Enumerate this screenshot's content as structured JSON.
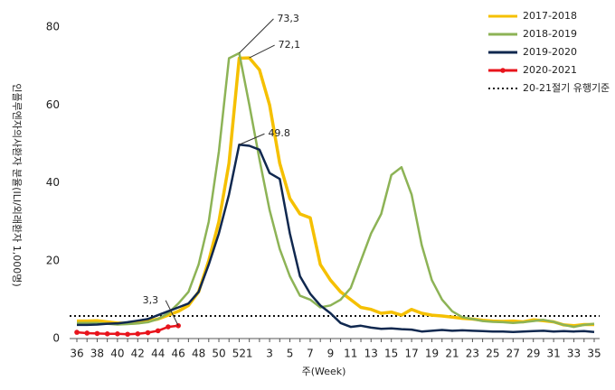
{
  "chart_data": {
    "type": "line",
    "ylabel": "인플루엔자의사환자 분율(ILI/외래환자 1,000명)",
    "xlabel": "주(Week)",
    "categories": [
      "36",
      null,
      "38",
      null,
      "40",
      null,
      "42",
      null,
      "44",
      null,
      "46",
      null,
      "48",
      null,
      "50",
      null,
      "52",
      "1",
      null,
      "3",
      null,
      "5",
      null,
      "7",
      null,
      "9",
      null,
      "11",
      null,
      "13",
      null,
      "15",
      null,
      "17",
      null,
      "19",
      null,
      "21",
      null,
      "23",
      null,
      "25",
      null,
      "27",
      null,
      "29",
      null,
      "31",
      null,
      "33",
      null,
      "35"
    ],
    "series": [
      {
        "name": "2017-2018",
        "color": "#f5c000",
        "values": [
          4.5,
          4.5,
          4.6,
          4.3,
          4,
          3.9,
          4,
          4.5,
          5,
          6,
          7,
          8.5,
          12,
          20,
          30,
          45,
          72,
          72.1,
          69,
          60,
          45,
          36,
          32,
          31,
          19,
          15,
          12,
          10,
          8,
          7.5,
          6.5,
          6.8,
          6,
          7.5,
          6.5,
          6,
          5.8,
          5.5,
          5.2,
          5,
          4.7,
          4.5,
          4.4,
          4.5,
          4.3,
          4.8,
          4.6,
          4.3,
          3.5,
          3.3,
          3.6,
          3.6
        ]
      },
      {
        "name": "2018-2019",
        "color": "#8db356",
        "values": [
          4,
          4,
          4,
          3.8,
          3.6,
          3.7,
          3.9,
          4.2,
          5,
          6.5,
          9,
          12,
          19,
          30,
          48,
          72,
          73.3,
          60,
          46,
          33,
          23,
          16,
          11,
          10,
          8,
          8.5,
          10,
          13,
          20,
          27,
          32,
          42,
          44,
          37,
          24,
          15,
          10,
          7,
          5.5,
          5,
          4.5,
          4.3,
          4.2,
          4,
          4.2,
          4.5,
          4.8,
          4.3,
          3.5,
          3,
          3.5,
          3.8
        ]
      },
      {
        "name": "2019-2020",
        "color": "#10284f",
        "values": [
          3.5,
          3.5,
          3.6,
          3.8,
          3.9,
          4.2,
          4.6,
          5,
          6,
          7,
          8,
          9,
          12,
          19,
          27,
          37,
          49.8,
          49.5,
          48.5,
          42.5,
          41,
          27,
          16,
          11.5,
          8.5,
          6.5,
          4,
          3,
          3.3,
          2.8,
          2.5,
          2.6,
          2.4,
          2.3,
          1.8,
          2,
          2.2,
          2,
          2.1,
          2,
          1.9,
          1.8,
          1.8,
          1.7,
          1.8,
          1.9,
          2,
          1.8,
          1.9,
          1.8,
          1.9,
          1.7
        ]
      },
      {
        "name": "2020-2021",
        "color": "#e8141c",
        "markers": true,
        "values": [
          1.6,
          1.4,
          1.3,
          1.2,
          1.2,
          1.1,
          1.2,
          1.5,
          2.0,
          3.0,
          3.3,
          null,
          null,
          null,
          null,
          null,
          null,
          null,
          null,
          null,
          null,
          null,
          null,
          null,
          null,
          null,
          null,
          null,
          null,
          null,
          null,
          null,
          null,
          null,
          null,
          null,
          null,
          null,
          null,
          null,
          null,
          null,
          null,
          null,
          null,
          null,
          null,
          null,
          null,
          null,
          null,
          null
        ]
      }
    ],
    "threshold": {
      "name": "20-21절기 유행기준",
      "value": 5.8,
      "color": "#111"
    },
    "annotations": [
      {
        "label": "73,3",
        "value": 73.3,
        "x": "52"
      },
      {
        "label": "72,1",
        "value": 72.1,
        "x": "1"
      },
      {
        "label": "49.8",
        "value": 49.8,
        "x": "52"
      },
      {
        "label": "3,3",
        "value": 3.3,
        "x": "46"
      }
    ],
    "ylim": [
      0,
      80
    ],
    "yticks": [
      0,
      20,
      40,
      60,
      80
    ],
    "grid": false
  }
}
